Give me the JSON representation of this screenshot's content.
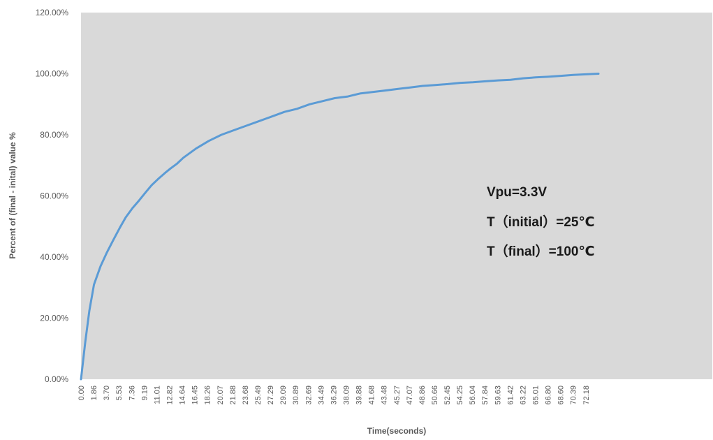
{
  "chart_data": {
    "type": "line",
    "title": "",
    "xlabel": "Time(seconds)",
    "ylabel": "Percent of (final - inital) value  %",
    "ylim": [
      0,
      120
    ],
    "y_tick_labels": [
      "0.00%",
      "20.00%",
      "40.00%",
      "60.00%",
      "80.00%",
      "100.00%",
      "120.00%"
    ],
    "x_tick_labels": [
      "0.00",
      "1.86",
      "3.70",
      "5.53",
      "7.36",
      "9.19",
      "11.01",
      "12.82",
      "14.64",
      "16.45",
      "18.26",
      "20.07",
      "21.88",
      "23.68",
      "25.49",
      "27.29",
      "29.09",
      "30.89",
      "32.69",
      "34.49",
      "36.29",
      "38.09",
      "39.88",
      "41.68",
      "43.48",
      "45.27",
      "47.07",
      "48.86",
      "50.66",
      "52.45",
      "54.25",
      "56.04",
      "57.84",
      "59.63",
      "61.42",
      "63.22",
      "65.01",
      "66.80",
      "68.60",
      "70.39",
      "72.18"
    ],
    "grid": false,
    "legend": "none",
    "colors": {
      "plot_bg": "#d9d9d9",
      "line": "#5b9bd5"
    },
    "annotations": [
      "Vpu=3.3V",
      "T（initial）=25℃",
      "T（final）=100℃"
    ],
    "series": [
      {
        "x": [
          0.0,
          0.6,
          1.2,
          1.86,
          2.8,
          3.7,
          4.6,
          5.53,
          6.4,
          7.36,
          8.3,
          9.19,
          10.1,
          11.01,
          12.0,
          12.82,
          13.7,
          14.64,
          16.45,
          18.26,
          20.07,
          21.88,
          23.68,
          25.49,
          27.29,
          29.09,
          30.89,
          32.69,
          34.49,
          36.29,
          38.09,
          39.88,
          41.68,
          43.48,
          45.27,
          47.07,
          48.86,
          50.66,
          52.45,
          54.25,
          56.04,
          57.84,
          59.63,
          61.42,
          63.22,
          65.01,
          66.8,
          68.6,
          70.39,
          72.18,
          74.0
        ],
        "values": [
          0.0,
          12.0,
          22.5,
          31.0,
          37.0,
          41.5,
          45.5,
          49.5,
          53.0,
          56.0,
          58.5,
          61.0,
          63.5,
          65.5,
          67.5,
          69.0,
          70.5,
          72.5,
          75.5,
          78.0,
          80.0,
          81.5,
          83.0,
          84.5,
          86.0,
          87.5,
          88.5,
          90.0,
          91.0,
          92.0,
          92.5,
          93.5,
          94.0,
          94.5,
          95.0,
          95.5,
          96.0,
          96.3,
          96.6,
          97.0,
          97.2,
          97.5,
          97.8,
          98.0,
          98.5,
          98.8,
          99.0,
          99.3,
          99.6,
          99.8,
          100.0
        ]
      }
    ]
  }
}
